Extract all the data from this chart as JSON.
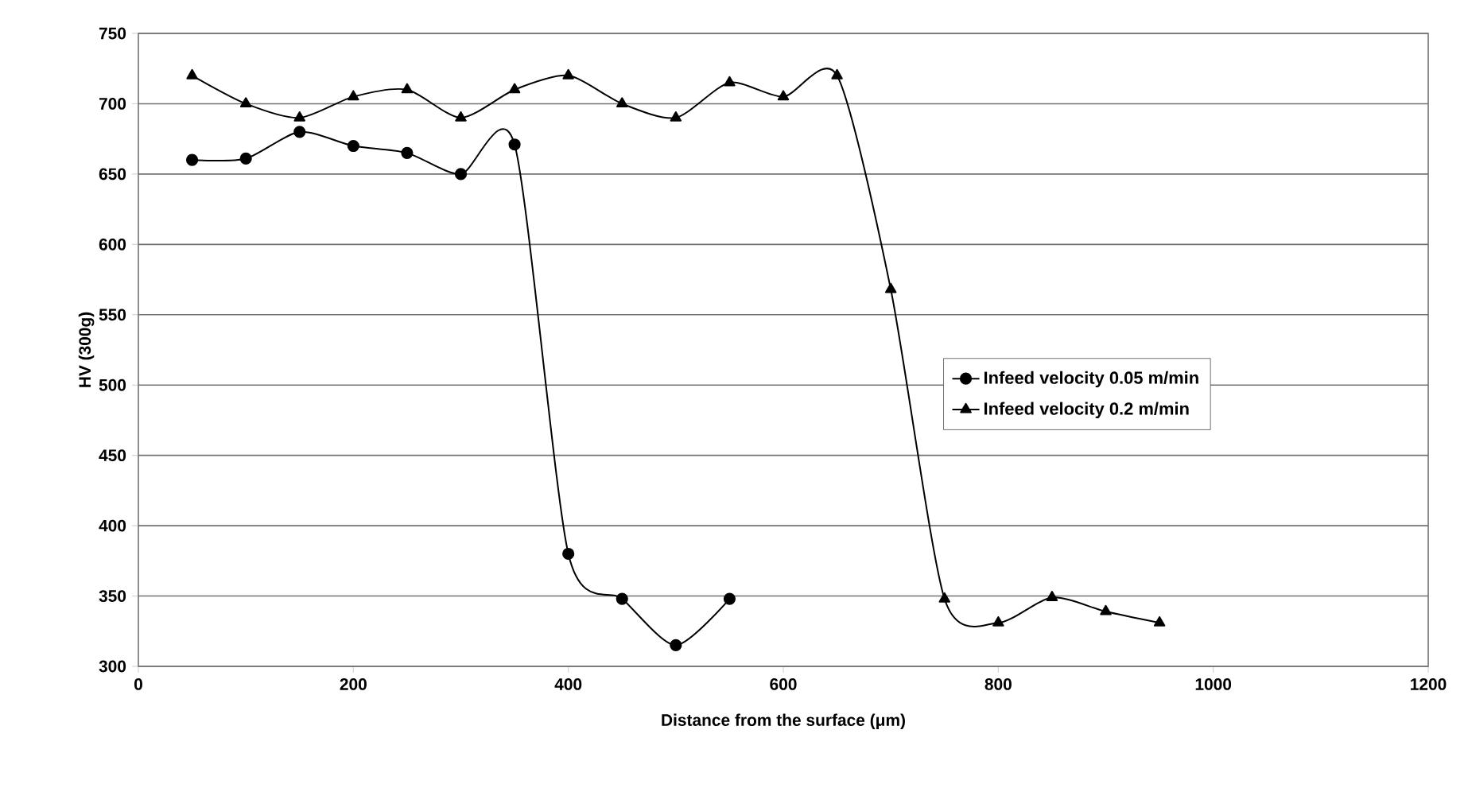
{
  "chart_data": {
    "type": "line",
    "xlabel": "Distance from the surface (μm)",
    "ylabel": "HV (300g)",
    "xlim": [
      0,
      1200
    ],
    "xticks": [
      0,
      200,
      400,
      600,
      800,
      1000,
      1200
    ],
    "ylim": [
      300,
      750
    ],
    "yticks": [
      300,
      350,
      400,
      450,
      500,
      550,
      600,
      650,
      700,
      750
    ],
    "grid": "y",
    "legend": "right",
    "series": [
      {
        "name": "Infeed velocity 0.05 m/min",
        "color": "#000000",
        "marker": "circle",
        "x": [
          50,
          100,
          150,
          200,
          250,
          300,
          350,
          400,
          450,
          500,
          550
        ],
        "values": [
          660,
          661,
          680,
          670,
          665,
          650,
          671,
          380,
          348,
          315,
          348
        ]
      },
      {
        "name": "Infeed velocity 0.2 m/min",
        "color": "#000000",
        "marker": "triangle",
        "x": [
          50,
          100,
          150,
          200,
          250,
          300,
          350,
          400,
          450,
          500,
          550,
          600,
          650,
          700,
          750,
          800,
          850,
          900,
          950
        ],
        "values": [
          720,
          700,
          690,
          705,
          710,
          690,
          710,
          720,
          700,
          690,
          715,
          705,
          720,
          568,
          348,
          331,
          349,
          339,
          331
        ]
      }
    ]
  }
}
